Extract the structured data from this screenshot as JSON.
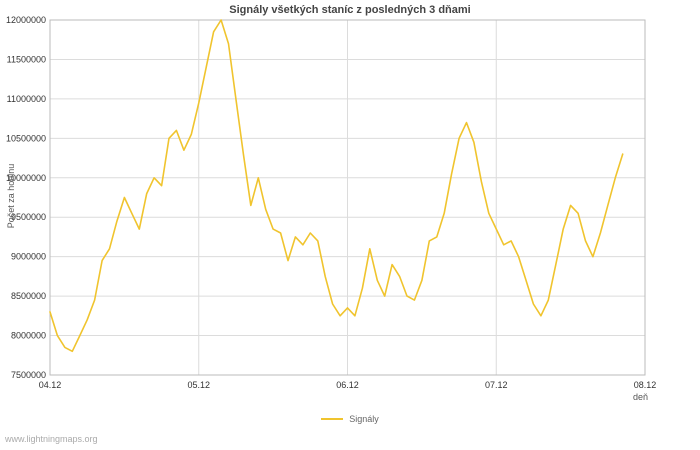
{
  "page": {
    "watermark": "www.lightningmaps.org"
  },
  "chart_data": {
    "type": "line",
    "title": "Signály všetkých staníc z posledných 3 dňami",
    "xlabel": "deň",
    "ylabel": "Počet za hodinu",
    "grid": true,
    "legend_position": "bottom-center",
    "xlim": [
      0,
      4
    ],
    "ylim": [
      7500000,
      12000000
    ],
    "xticks": [
      {
        "label": "04.12",
        "value": 0
      },
      {
        "label": "05.12",
        "value": 1
      },
      {
        "label": "06.12",
        "value": 2
      },
      {
        "label": "07.12",
        "value": 3
      },
      {
        "label": "08.12",
        "value": 4
      }
    ],
    "yticks": [
      7500000,
      8000000,
      8500000,
      9000000,
      9500000,
      10000000,
      10500000,
      11000000,
      11500000,
      12000000
    ],
    "series": [
      {
        "name": "Signály",
        "color": "#f0c42e",
        "x": [
          0.0,
          0.05,
          0.1,
          0.15,
          0.2,
          0.25,
          0.3,
          0.35,
          0.4,
          0.45,
          0.5,
          0.55,
          0.6,
          0.65,
          0.7,
          0.75,
          0.8,
          0.85,
          0.9,
          0.95,
          1.0,
          1.05,
          1.1,
          1.15,
          1.2,
          1.25,
          1.3,
          1.35,
          1.4,
          1.45,
          1.5,
          1.55,
          1.6,
          1.65,
          1.7,
          1.75,
          1.8,
          1.85,
          1.9,
          1.95,
          2.0,
          2.05,
          2.1,
          2.15,
          2.2,
          2.25,
          2.3,
          2.35,
          2.4,
          2.45,
          2.5,
          2.55,
          2.6,
          2.65,
          2.7,
          2.75,
          2.8,
          2.85,
          2.9,
          2.95,
          3.0,
          3.05,
          3.1,
          3.15,
          3.2,
          3.25,
          3.3,
          3.35,
          3.4,
          3.45,
          3.5,
          3.55,
          3.6,
          3.65,
          3.7,
          3.75,
          3.8,
          3.85
        ],
        "values": [
          8300000,
          8000000,
          7850000,
          7800000,
          8000000,
          8200000,
          8450000,
          8950000,
          9100000,
          9450000,
          9750000,
          9550000,
          9350000,
          9800000,
          10000000,
          9900000,
          10500000,
          10600000,
          10350000,
          10550000,
          10950000,
          11400000,
          11850000,
          12000000,
          11700000,
          11000000,
          10300000,
          9650000,
          10000000,
          9600000,
          9350000,
          9300000,
          8950000,
          9250000,
          9150000,
          9300000,
          9200000,
          8750000,
          8400000,
          8250000,
          8350000,
          8250000,
          8600000,
          9100000,
          8700000,
          8500000,
          8900000,
          8750000,
          8500000,
          8450000,
          8700000,
          9200000,
          9250000,
          9550000,
          10050000,
          10500000,
          10700000,
          10450000,
          9950000,
          9550000,
          9350000,
          9150000,
          9200000,
          9000000,
          8700000,
          8400000,
          8250000,
          8450000,
          8900000,
          9350000,
          9650000,
          9550000,
          9200000,
          9000000,
          9300000,
          9650000,
          10000000,
          10300000
        ]
      }
    ]
  }
}
